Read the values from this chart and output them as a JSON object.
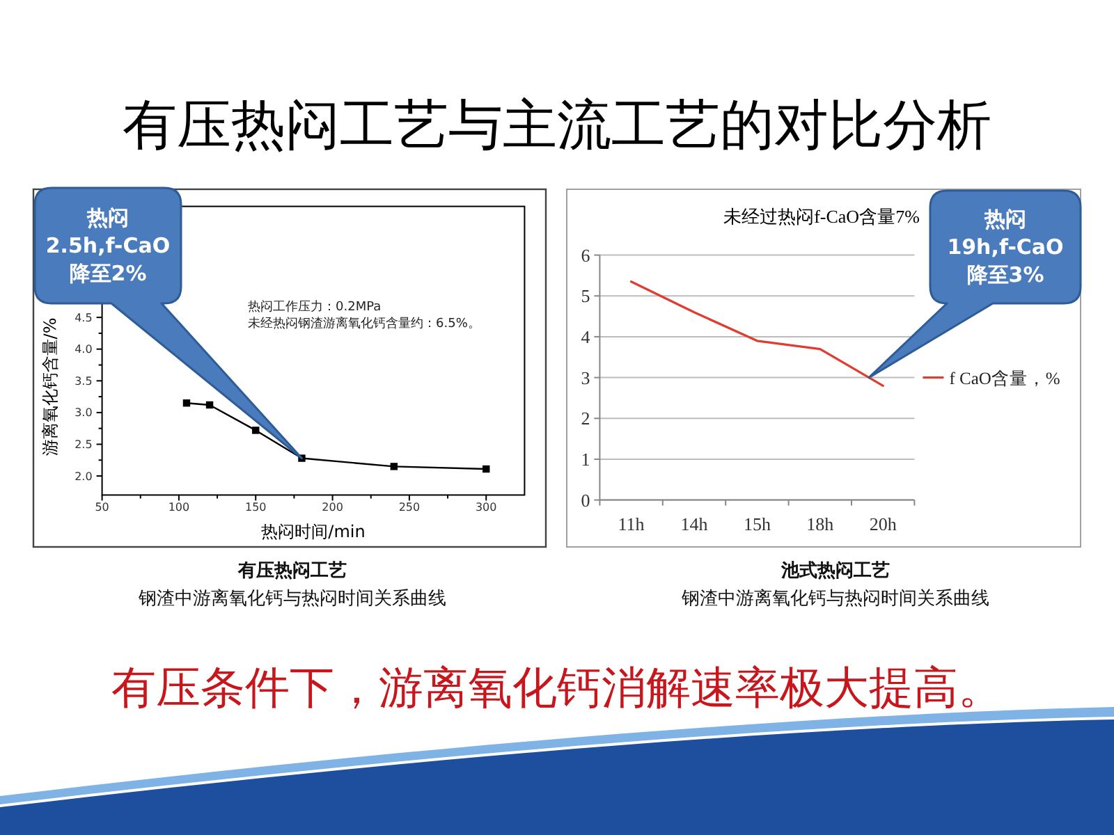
{
  "chart_data": [
    {
      "type": "other",
      "title": "有压热闷工艺与主流工艺的对比分析",
      "annotations": [
        "有压条件下，游离氧化钙消解速率极大提高。"
      ]
    },
    {
      "type": "line",
      "x": [
        105,
        120,
        150,
        180,
        240,
        300
      ],
      "series": [
        {
          "color": "#000000",
          "values": [
            3.15,
            3.12,
            2.72,
            2.28,
            2.15,
            2.11
          ]
        }
      ],
      "xlim": [
        50,
        325
      ],
      "ylim": [
        1.7,
        6.25
      ],
      "xticks": [
        50,
        {
          "value": 75,
          "label": null
        },
        100,
        {
          "value": 125,
          "label": null
        },
        150,
        {
          "value": 175,
          "label": null
        },
        200,
        {
          "value": 225,
          "label": null
        },
        250,
        {
          "value": 275,
          "label": null
        },
        300
      ],
      "yticks": [
        {
          "value": 2,
          "label": "2.0"
        },
        {
          "value": 2.25,
          "label": null
        },
        2.5,
        {
          "value": 2.75,
          "label": null
        },
        {
          "value": 3,
          "label": "3.0"
        },
        {
          "value": 3.25,
          "label": null
        },
        3.5,
        {
          "value": 3.75,
          "label": null
        },
        {
          "value": 4,
          "label": "4.0"
        },
        {
          "value": 4.25,
          "label": null
        },
        4.5
      ],
      "xlabel": "热闷时间/min",
      "ylabel": "游离氧化钙含量/%",
      "marker": "square",
      "annotations": [
        "热闷工作压力：0.2MPa",
        "未经热闷钢渣游离氧化钙含量约：6.5%。",
        "热闷2.5h,f-CaO降至2%",
        "有压热闷工艺",
        "钢渣中游离氧化钙与热闷时间关系曲线"
      ]
    },
    {
      "type": "line",
      "title": "未经过热闷f-CaO含量7%",
      "categories": [
        "11h",
        "14h",
        "15h",
        "18h",
        "20h"
      ],
      "series": [
        {
          "name": "f CaO含量，%",
          "color": "#e03c31",
          "values": [
            5.35,
            4.6,
            3.9,
            3.7,
            2.8
          ]
        }
      ],
      "ylim": [
        0,
        6
      ],
      "yticks": [
        0,
        1,
        2,
        3,
        4,
        5,
        6
      ],
      "grid": "y",
      "legend": "right",
      "annotations": [
        "热闷19h,f-CaO降至3%",
        "池式热闷工艺",
        "钢渣中游离氧化钙与热闷时间关系曲线"
      ]
    }
  ]
}
